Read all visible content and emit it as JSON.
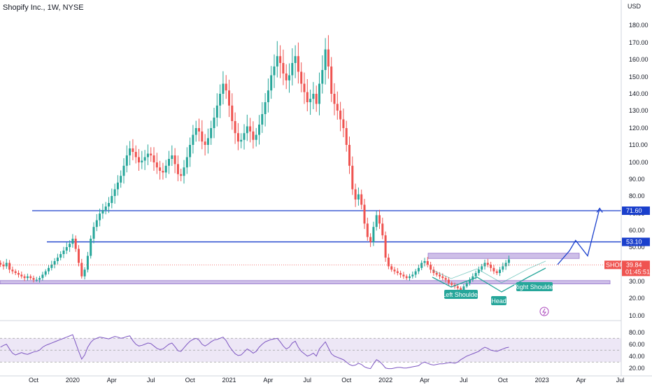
{
  "header": {
    "title": "Shopify Inc., 1W, NYSE",
    "currency": "USD"
  },
  "colors": {
    "up": "#26a69a",
    "down": "#ef5350",
    "level_line": "#1a3fcc",
    "zone": "#b39ddb",
    "pattern": "#26a69a",
    "rsi_line": "#7e57c2",
    "rsi_band": "#ede7f6",
    "price_tag": "#ef5350"
  },
  "chart_data": {
    "type": "candlestick",
    "price_axis": {
      "min": 10,
      "max": 190,
      "ticks": [
        10,
        20,
        30,
        40,
        50,
        60,
        70,
        80,
        90,
        100,
        110,
        120,
        130,
        140,
        150,
        160,
        170,
        180
      ],
      "tick_labels": [
        "10.00",
        "20.00",
        "30.00",
        "40.00",
        "50.00",
        "60.00",
        "70.00",
        "80.00",
        "90.00",
        "100.00",
        "110.00",
        "120.00",
        "130.00",
        "140.00",
        "150.00",
        "160.00",
        "170.00",
        "180.00"
      ]
    },
    "time_axis": {
      "labels": [
        "Oct",
        "2020",
        "Apr",
        "Jul",
        "Oct",
        "2021",
        "Apr",
        "Jul",
        "Oct",
        "2022",
        "Apr",
        "Jul",
        "Oct",
        "2023",
        "Apr",
        "Jul"
      ],
      "label_week_index": [
        0,
        13,
        26,
        39,
        52,
        65,
        78,
        91,
        104,
        117,
        130,
        143,
        156,
        169,
        182,
        195
      ]
    },
    "candles_start_week": -11,
    "price_series": [
      40,
      39,
      41,
      37,
      36,
      35,
      34,
      33,
      32,
      33,
      32,
      31,
      31,
      32,
      34,
      36,
      38,
      40,
      42,
      44,
      46,
      48,
      50,
      52,
      55,
      49,
      41,
      33,
      37,
      45,
      55,
      62,
      66,
      70,
      72,
      74,
      76,
      80,
      84,
      88,
      92,
      98,
      104,
      108,
      106,
      103,
      100,
      101,
      103,
      105,
      104,
      100,
      97,
      95,
      94,
      98,
      102,
      104,
      99,
      93,
      92,
      97,
      103,
      110,
      116,
      120,
      118,
      112,
      110,
      114,
      120,
      126,
      133,
      140,
      146,
      142,
      133,
      124,
      117,
      112,
      113,
      117,
      121,
      118,
      113,
      116,
      122,
      128,
      135,
      142,
      151,
      156,
      162,
      158,
      152,
      148,
      151,
      158,
      162,
      153,
      146,
      141,
      135,
      137,
      140,
      134,
      146,
      154,
      166,
      156,
      140,
      134,
      130,
      125,
      120,
      110,
      98,
      84,
      78,
      81,
      75,
      64,
      56,
      53,
      62,
      69,
      64,
      57,
      44,
      39,
      37,
      36,
      35,
      34,
      33,
      32,
      33,
      34,
      36,
      38,
      41,
      42,
      40,
      37,
      35,
      34,
      33,
      32,
      31,
      29,
      28,
      27,
      26,
      25,
      27,
      29,
      31,
      33,
      35,
      37,
      39,
      41,
      40,
      38,
      36,
      35,
      37,
      39,
      41,
      43
    ],
    "levels": [
      {
        "label": "71.60",
        "value": 71.6
      },
      {
        "label": "53.10",
        "value": 53.1
      }
    ],
    "zones": [
      {
        "from": 28.5,
        "to": 30.5
      },
      {
        "from": 43.5,
        "to": 46.5
      }
    ],
    "current_price": {
      "symbol": "SHOP",
      "value": "39.84",
      "countdown": "01:45:51",
      "y": 39.84
    },
    "annotations": [
      {
        "text": "Left Shoulder"
      },
      {
        "text": "Head"
      },
      {
        "text": "Right Shoulder"
      }
    ],
    "projection": {
      "weeks": [
        170,
        174,
        176,
        180,
        184
      ],
      "prices": [
        40,
        48,
        54,
        45,
        73
      ]
    },
    "rsi": {
      "min": 15,
      "max": 95,
      "ticks": [
        20,
        40,
        60,
        80
      ],
      "tick_labels": [
        "20.00",
        "40.00",
        "60.00",
        "80.00"
      ],
      "band": [
        30,
        70
      ],
      "mid": 50,
      "series": [
        55,
        58,
        60,
        52,
        45,
        42,
        44,
        46,
        44,
        43,
        45,
        47,
        48,
        50,
        55,
        58,
        60,
        62,
        64,
        66,
        68,
        70,
        72,
        74,
        76,
        62,
        48,
        35,
        42,
        55,
        63,
        68,
        70,
        72,
        71,
        70,
        69,
        71,
        73,
        72,
        70,
        71,
        73,
        74,
        66,
        60,
        57,
        58,
        60,
        62,
        61,
        57,
        53,
        51,
        52,
        56,
        60,
        62,
        56,
        49,
        48,
        54,
        60,
        65,
        68,
        70,
        67,
        60,
        57,
        60,
        64,
        67,
        68,
        70,
        72,
        66,
        57,
        50,
        44,
        41,
        42,
        47,
        52,
        49,
        45,
        48,
        55,
        60,
        64,
        66,
        68,
        69,
        70,
        64,
        57,
        52,
        55,
        62,
        65,
        55,
        48,
        44,
        40,
        42,
        45,
        40,
        52,
        58,
        64,
        54,
        44,
        40,
        38,
        36,
        34,
        30,
        26,
        24,
        25,
        28,
        26,
        22,
        20,
        19,
        27,
        34,
        31,
        26,
        20,
        19,
        19,
        20,
        21,
        21,
        20,
        20,
        21,
        22,
        23,
        24,
        28,
        30,
        28,
        26,
        25,
        26,
        27,
        27,
        28,
        29,
        29,
        28,
        30,
        34,
        37,
        40,
        42,
        44,
        46,
        48,
        52,
        55,
        53,
        50,
        49,
        48,
        50,
        52,
        54,
        55
      ]
    },
    "xlabel": "",
    "ylabel": ""
  }
}
